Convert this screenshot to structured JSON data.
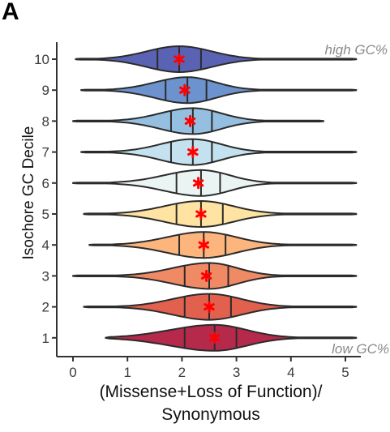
{
  "panel_label": "A",
  "chart_data": {
    "type": "violin",
    "title": "",
    "xlabel_lines": [
      "(Missense+Loss of Function)/",
      "Synonymous"
    ],
    "ylabel": "Isochore GC Decile",
    "xlim": [
      0,
      5
    ],
    "x_ticks": [
      "0",
      "1",
      "2",
      "3",
      "4",
      "5"
    ],
    "categories": [
      "1",
      "2",
      "3",
      "4",
      "5",
      "6",
      "7",
      "8",
      "9",
      "10"
    ],
    "annotations": {
      "top": "high GC%",
      "bottom": "low GC%"
    },
    "mean_marker_color": "#ff0000",
    "violins": [
      {
        "decile": "1",
        "min": 0.6,
        "max": 5.2,
        "q1": 2.05,
        "median": 2.6,
        "q3": 3.0,
        "mean": 2.6,
        "color": "#b5294b"
      },
      {
        "decile": "2",
        "min": 0.2,
        "max": 5.2,
        "q1": 2.05,
        "median": 2.5,
        "q3": 2.9,
        "mean": 2.5,
        "color": "#e2604e"
      },
      {
        "decile": "3",
        "min": 0.0,
        "max": 5.2,
        "q1": 2.05,
        "median": 2.5,
        "q3": 2.85,
        "mean": 2.45,
        "color": "#f08a65"
      },
      {
        "decile": "4",
        "min": 0.3,
        "max": 5.2,
        "q1": 1.95,
        "median": 2.4,
        "q3": 2.8,
        "mean": 2.4,
        "color": "#fbb57d"
      },
      {
        "decile": "5",
        "min": 0.2,
        "max": 5.2,
        "q1": 1.9,
        "median": 2.35,
        "q3": 2.75,
        "mean": 2.35,
        "color": "#fee3a2"
      },
      {
        "decile": "6",
        "min": 0.0,
        "max": 5.2,
        "q1": 1.9,
        "median": 2.35,
        "q3": 2.7,
        "mean": 2.3,
        "color": "#e9f4f3"
      },
      {
        "decile": "7",
        "min": 0.15,
        "max": 5.2,
        "q1": 1.8,
        "median": 2.2,
        "q3": 2.55,
        "mean": 2.2,
        "color": "#c3e1ee"
      },
      {
        "decile": "8",
        "min": 0.0,
        "max": 4.6,
        "q1": 1.8,
        "median": 2.2,
        "q3": 2.55,
        "mean": 2.15,
        "color": "#94bfe0"
      },
      {
        "decile": "9",
        "min": 0.15,
        "max": 5.2,
        "q1": 1.7,
        "median": 2.1,
        "q3": 2.45,
        "mean": 2.05,
        "color": "#6c93cd"
      },
      {
        "decile": "10",
        "min": 0.05,
        "max": 5.2,
        "q1": 1.55,
        "median": 1.95,
        "q3": 2.35,
        "mean": 1.95,
        "color": "#5a62b4"
      }
    ]
  }
}
